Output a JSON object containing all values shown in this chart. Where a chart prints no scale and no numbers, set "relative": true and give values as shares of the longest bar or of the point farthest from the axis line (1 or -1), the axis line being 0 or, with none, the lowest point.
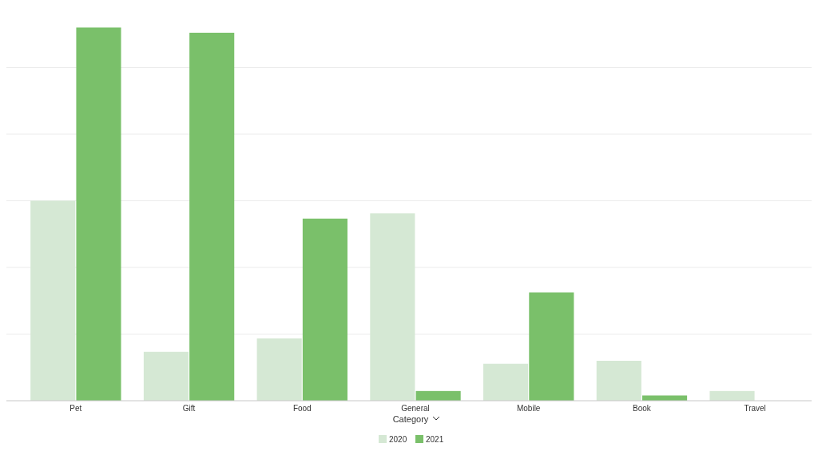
{
  "chart_data": {
    "type": "bar",
    "relative": true,
    "xlabel": "Category",
    "categories": [
      "Pet",
      "Gift",
      "Food",
      "General",
      "Mobile",
      "Book",
      "Travel"
    ],
    "series": [
      {
        "name": "2020",
        "color": "#d5e8d4",
        "values": [
          0.536,
          0.131,
          0.167,
          0.502,
          0.099,
          0.107,
          0.026
        ]
      },
      {
        "name": "2021",
        "color": "#7ac06a",
        "values": [
          1,
          0.986,
          0.488,
          0.026,
          0.29,
          0.014,
          null
        ]
      }
    ],
    "grid": "y",
    "legend": "bottom"
  }
}
